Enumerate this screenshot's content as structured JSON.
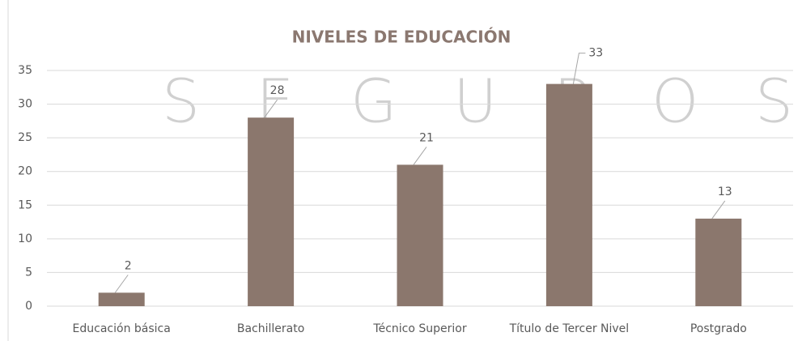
{
  "chart_data": {
    "type": "bar",
    "title": "NIVELES DE EDUCACIÓN",
    "watermark": "SEGUROS",
    "categories": [
      "Educación básica",
      "Bachillerato",
      "Técnico Superior",
      "Título de Tercer Nivel",
      "Postgrado"
    ],
    "values": [
      2,
      28,
      21,
      33,
      13
    ],
    "color": "#8b776d",
    "ylim": [
      0,
      35
    ],
    "yticks": [
      0,
      5,
      10,
      15,
      20,
      25,
      30,
      35
    ],
    "grid": true
  }
}
